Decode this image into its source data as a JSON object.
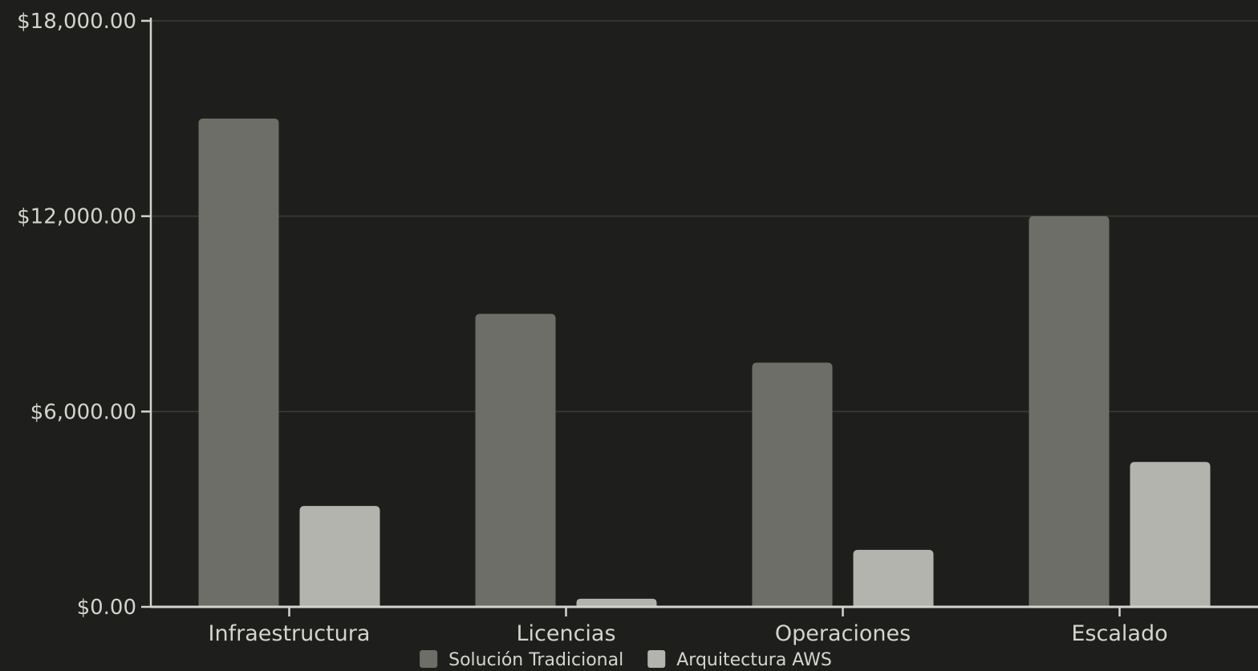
{
  "chart_data": {
    "type": "bar",
    "categories": [
      "Infraestructura",
      "Licencias",
      "Operaciones",
      "Escalado"
    ],
    "series": [
      {
        "name": "Solución Tradicional",
        "values": [
          15000,
          9000,
          7500,
          12000
        ],
        "color": "#6e6e68"
      },
      {
        "name": "Arquitectura AWS",
        "values": [
          3100,
          250,
          1750,
          4450
        ],
        "color": "#b3b4ae"
      }
    ],
    "title": "",
    "xlabel": "",
    "ylabel": "",
    "ylim": [
      0,
      18000
    ],
    "yticks": [
      0,
      6000,
      12000,
      18000
    ],
    "ytick_labels": [
      "$0.00",
      "$6,000.00",
      "$12,000.00",
      "$18,000.00"
    ],
    "grid": true,
    "legend_position": "bottom-center",
    "colors": {
      "background": "#1e1e1c",
      "axis": "#d4d4cf",
      "grid": "#3c3c39",
      "text": "#d4d4cf"
    }
  }
}
